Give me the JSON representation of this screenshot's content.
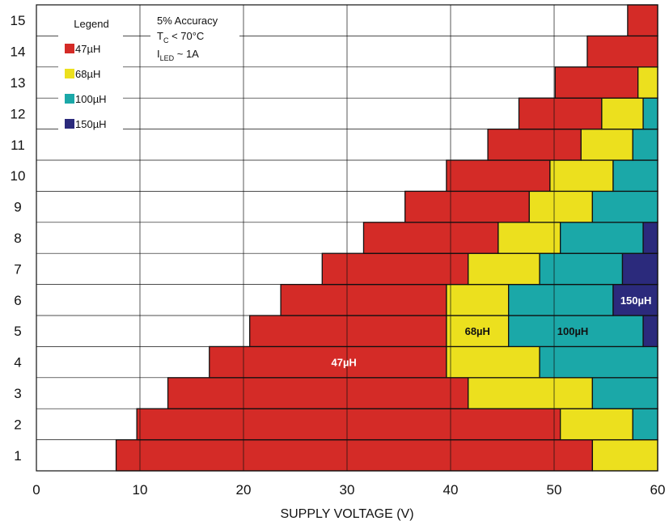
{
  "chart_data": {
    "type": "bar",
    "orientation": "horizontal-stacked-ranges",
    "xlabel": "SUPPLY VOLTAGE (V)",
    "ylabel": "",
    "xlim": [
      0,
      60
    ],
    "xticks": [
      0,
      10,
      20,
      30,
      40,
      50,
      60
    ],
    "ylim": [
      0.5,
      15.5
    ],
    "yticks": [
      "1",
      "2",
      "3",
      "4",
      "5",
      "6",
      "7",
      "8",
      "9",
      "10",
      "11",
      "12",
      "13",
      "14",
      "15"
    ],
    "grid": true,
    "legend": {
      "title": "Legend",
      "position": "top-left",
      "entries": [
        {
          "label": "47µH",
          "color": "#d42b27"
        },
        {
          "label": "68µH",
          "color": "#ece01e"
        },
        {
          "label": "100µH",
          "color": "#1ba8a8"
        },
        {
          "label": "150µH",
          "color": "#2b2a7c"
        }
      ]
    },
    "annotations": {
      "line1": "5% Accuracy",
      "line2_main": "T",
      "line2_sub": "C",
      "line2_rest": " < 70°C",
      "line3_main": "I",
      "line3_sub": "LED",
      "line3_rest": " ~ 1A"
    },
    "rows": [
      {
        "y": 1,
        "segments": [
          {
            "inductor": "47µH",
            "from": 7.7,
            "to": 53.7
          },
          {
            "inductor": "68µH",
            "from": 53.7,
            "to": 60
          }
        ]
      },
      {
        "y": 2,
        "segments": [
          {
            "inductor": "47µH",
            "from": 9.7,
            "to": 50.6
          },
          {
            "inductor": "68µH",
            "from": 50.6,
            "to": 57.6
          },
          {
            "inductor": "100µH",
            "from": 57.6,
            "to": 60
          }
        ]
      },
      {
        "y": 3,
        "segments": [
          {
            "inductor": "47µH",
            "from": 12.7,
            "to": 41.7
          },
          {
            "inductor": "68µH",
            "from": 41.7,
            "to": 53.7
          },
          {
            "inductor": "100µH",
            "from": 53.7,
            "to": 60
          }
        ]
      },
      {
        "y": 4,
        "segments": [
          {
            "inductor": "47µH",
            "from": 16.7,
            "to": 39.6
          },
          {
            "inductor": "68µH",
            "from": 39.6,
            "to": 48.6
          },
          {
            "inductor": "100µH",
            "from": 48.6,
            "to": 60
          }
        ]
      },
      {
        "y": 5,
        "segments": [
          {
            "inductor": "47µH",
            "from": 20.6,
            "to": 39.6
          },
          {
            "inductor": "68µH",
            "from": 39.6,
            "to": 45.6
          },
          {
            "inductor": "100µH",
            "from": 45.6,
            "to": 58.6
          },
          {
            "inductor": "150µH",
            "from": 58.6,
            "to": 60
          }
        ]
      },
      {
        "y": 6,
        "segments": [
          {
            "inductor": "47µH",
            "from": 23.6,
            "to": 39.6
          },
          {
            "inductor": "68µH",
            "from": 39.6,
            "to": 45.6
          },
          {
            "inductor": "100µH",
            "from": 45.6,
            "to": 55.7
          },
          {
            "inductor": "150µH",
            "from": 55.7,
            "to": 60
          }
        ]
      },
      {
        "y": 7,
        "segments": [
          {
            "inductor": "47µH",
            "from": 27.6,
            "to": 41.7
          },
          {
            "inductor": "68µH",
            "from": 41.7,
            "to": 48.6
          },
          {
            "inductor": "100µH",
            "from": 48.6,
            "to": 56.6
          },
          {
            "inductor": "150µH",
            "from": 56.6,
            "to": 60
          }
        ]
      },
      {
        "y": 8,
        "segments": [
          {
            "inductor": "47µH",
            "from": 31.6,
            "to": 44.6
          },
          {
            "inductor": "68µH",
            "from": 44.6,
            "to": 50.6
          },
          {
            "inductor": "100µH",
            "from": 50.6,
            "to": 58.6
          },
          {
            "inductor": "150µH",
            "from": 58.6,
            "to": 60
          }
        ]
      },
      {
        "y": 9,
        "segments": [
          {
            "inductor": "47µH",
            "from": 35.6,
            "to": 47.6
          },
          {
            "inductor": "68µH",
            "from": 47.6,
            "to": 53.7
          },
          {
            "inductor": "100µH",
            "from": 53.7,
            "to": 60
          }
        ]
      },
      {
        "y": 10,
        "segments": [
          {
            "inductor": "47µH",
            "from": 39.6,
            "to": 49.6
          },
          {
            "inductor": "68µH",
            "from": 49.6,
            "to": 55.7
          },
          {
            "inductor": "100µH",
            "from": 55.7,
            "to": 60
          }
        ]
      },
      {
        "y": 11,
        "segments": [
          {
            "inductor": "47µH",
            "from": 43.6,
            "to": 52.6
          },
          {
            "inductor": "68µH",
            "from": 52.6,
            "to": 57.6
          },
          {
            "inductor": "100µH",
            "from": 57.6,
            "to": 60
          }
        ]
      },
      {
        "y": 12,
        "segments": [
          {
            "inductor": "47µH",
            "from": 46.6,
            "to": 54.6
          },
          {
            "inductor": "68µH",
            "from": 54.6,
            "to": 58.6
          },
          {
            "inductor": "100µH",
            "from": 58.6,
            "to": 60
          }
        ]
      },
      {
        "y": 13,
        "segments": [
          {
            "inductor": "47µH",
            "from": 50.1,
            "to": 58.1
          },
          {
            "inductor": "68µH",
            "from": 58.1,
            "to": 60
          }
        ]
      },
      {
        "y": 14,
        "segments": [
          {
            "inductor": "47µH",
            "from": 53.2,
            "to": 60
          }
        ]
      },
      {
        "y": 15,
        "segments": [
          {
            "inductor": "47µH",
            "from": 57.1,
            "to": 60
          }
        ]
      }
    ],
    "data_labels": [
      {
        "text": "47µH",
        "row": 4,
        "x": 29.7,
        "color": "#ffffff"
      },
      {
        "text": "68µH",
        "row": 5,
        "x": 42.6,
        "color": "#111111"
      },
      {
        "text": "100µH",
        "row": 5,
        "x": 51.8,
        "color": "#111111"
      },
      {
        "text": "150µH",
        "row": 6,
        "x": 57.9,
        "color": "#ffffff"
      }
    ]
  }
}
